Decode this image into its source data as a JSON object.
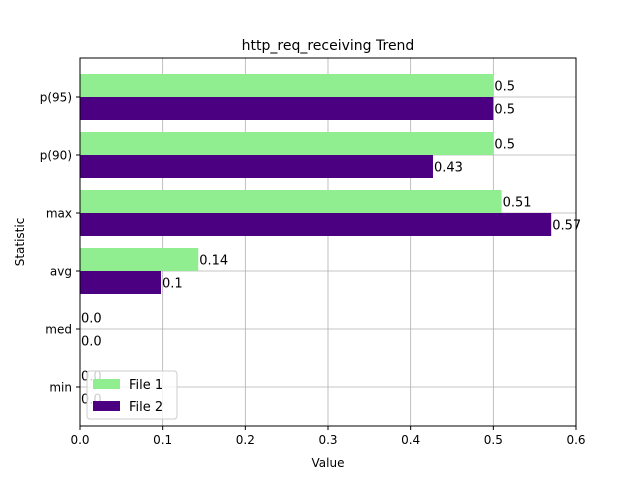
{
  "chart_data": {
    "type": "bar",
    "orientation": "horizontal",
    "title": "http_req_receiving Trend",
    "xlabel": "Value",
    "ylabel": "Statistic",
    "categories": [
      "min",
      "med",
      "avg",
      "max",
      "p(90)",
      "p(95)"
    ],
    "series": [
      {
        "name": "File 1",
        "color": "#90ee90",
        "values": [
          0.0,
          0.0,
          0.143,
          0.51,
          0.5,
          0.5
        ],
        "labels": [
          "0.0",
          "0.0",
          "0.14",
          "0.51",
          "0.5",
          "0.5"
        ]
      },
      {
        "name": "File 2",
        "color": "#4b0082",
        "values": [
          0.0,
          0.0,
          0.098,
          0.57,
          0.427,
          0.5
        ],
        "labels": [
          "0.0",
          "0.0",
          "0.1",
          "0.57",
          "0.43",
          "0.5"
        ]
      }
    ],
    "xlim": [
      0,
      0.6
    ],
    "xticks": [
      "0.0",
      "0.1",
      "0.2",
      "0.3",
      "0.4",
      "0.5",
      "0.6"
    ],
    "grid": true,
    "legend": "lower-left"
  }
}
